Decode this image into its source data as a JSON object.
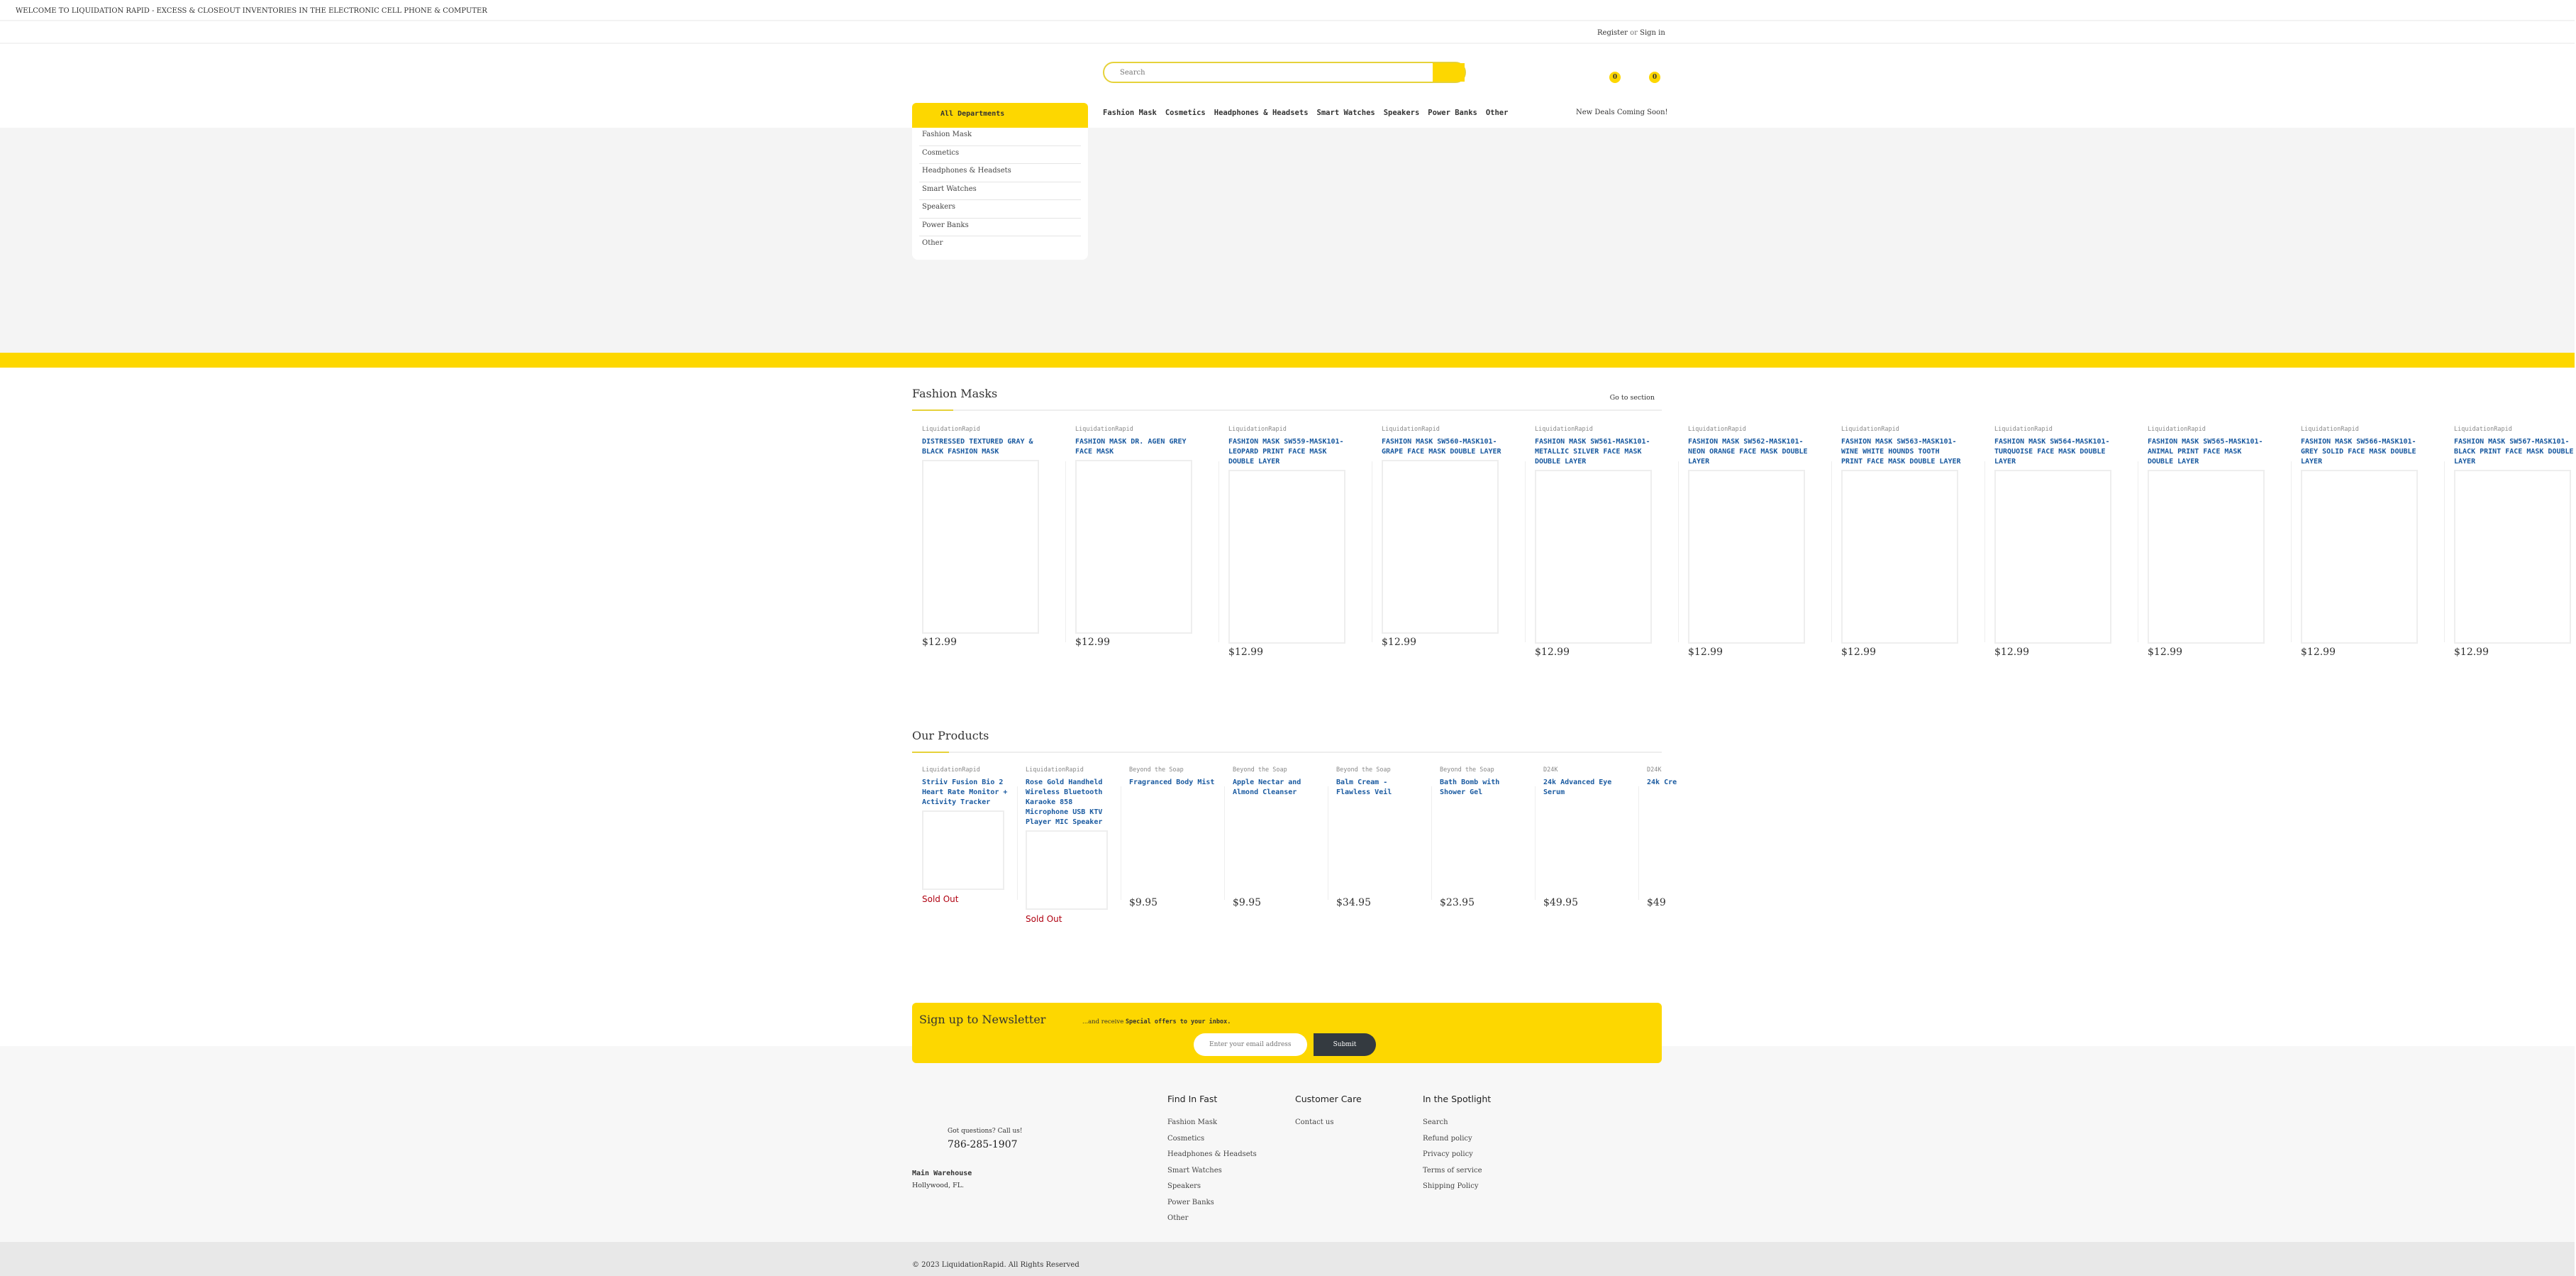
{
  "topbar": {
    "welcome": "WELCOME TO LIQUIDATION RAPID - EXCESS & CLOSEOUT INVENTORIES IN THE ELECTRONIC CELL PHONE & COMPUTER"
  },
  "account": {
    "register": "Register",
    "or": "or",
    "signin": "Sign in"
  },
  "search": {
    "placeholder": "Search"
  },
  "badges": {
    "wishlist": "0",
    "cart": "0"
  },
  "colors": {
    "accent": "#fdd700",
    "link": "#1a5aa0",
    "sold_out": "#b00010",
    "dark_button": "#343a40"
  },
  "departments": {
    "label": "All Departments",
    "items": [
      "Fashion Mask",
      "Cosmetics",
      "Headphones & Headsets",
      "Smart Watches",
      "Speakers",
      "Power Banks",
      "Other"
    ]
  },
  "nav": {
    "items": [
      "Fashion Mask",
      "Cosmetics",
      "Headphones & Headsets",
      "Smart Watches",
      "Speakers",
      "Power Banks",
      "Other"
    ],
    "deals": "New Deals Coming Soon!"
  },
  "fashion_masks": {
    "title": "Fashion Masks",
    "goto": "Go to section",
    "products": [
      {
        "brand": "LiquidationRapid",
        "title": "DISTRESSED TEXTURED GRAY & BLACK FASHION MASK",
        "price": "$12.99"
      },
      {
        "brand": "LiquidationRapid",
        "title": "FASHION MASK DR. AGEN GREY FACE MASK",
        "price": "$12.99"
      },
      {
        "brand": "LiquidationRapid",
        "title": "FASHION MASK SW559-MASK101- LEOPARD PRINT FACE MASK DOUBLE LAYER",
        "price": "$12.99"
      },
      {
        "brand": "LiquidationRapid",
        "title": "FASHION MASK SW560-MASK101- GRAPE FACE MASK DOUBLE LAYER",
        "price": "$12.99"
      },
      {
        "brand": "LiquidationRapid",
        "title": "FASHION MASK SW561-MASK101- METALLIC SILVER FACE MASK DOUBLE LAYER",
        "price": "$12.99"
      },
      {
        "brand": "LiquidationRapid",
        "title": "FASHION MASK SW562-MASK101-NEON ORANGE FACE MASK DOUBLE LAYER",
        "price": "$12.99"
      },
      {
        "brand": "LiquidationRapid",
        "title": "FASHION MASK SW563-MASK101- WINE WHITE HOUNDS TOOTH PRINT FACE MASK DOUBLE LAYER",
        "price": "$12.99"
      },
      {
        "brand": "LiquidationRapid",
        "title": "FASHION MASK SW564-MASK101- TURQUOISE FACE MASK DOUBLE LAYER",
        "price": "$12.99"
      },
      {
        "brand": "LiquidationRapid",
        "title": "FASHION MASK SW565-MASK101- ANIMAL PRINT FACE MASK DOUBLE LAYER",
        "price": "$12.99"
      },
      {
        "brand": "LiquidationRapid",
        "title": "FASHION MASK SW566-MASK101-GREY SOLID FACE MASK DOUBLE LAYER",
        "price": "$12.99"
      },
      {
        "brand": "LiquidationRapid",
        "title": "FASHION MASK SW567-MASK101-BLACK PRINT FACE MASK DOUBLE LAYER",
        "price": "$12.99"
      }
    ]
  },
  "our_products": {
    "title": "Our Products",
    "products": [
      {
        "brand": "LiquidationRapid",
        "title": "Striiv Fusion Bio 2 Heart Rate Monitor + Activity Tracker",
        "price": "",
        "status": "Sold Out",
        "image": true
      },
      {
        "brand": "LiquidationRapid",
        "title": "Rose Gold Handheld Wireless Bluetooth Karaoke 858 Microphone USB KTV Player MIC Speaker",
        "price": "",
        "status": "Sold Out",
        "image": true
      },
      {
        "brand": "Beyond the Soap",
        "title": "Fragranced Body Mist",
        "price": "$9.95",
        "status": "",
        "image": false
      },
      {
        "brand": "Beyond the Soap",
        "title": "Apple Nectar and Almond Cleanser",
        "price": "$9.95",
        "status": "",
        "image": false
      },
      {
        "brand": "Beyond the Soap",
        "title": "Balm Cream - Flawless Veil",
        "price": "$34.95",
        "status": "",
        "image": false
      },
      {
        "brand": "Beyond the Soap",
        "title": "Bath Bomb with Shower Gel",
        "price": "$23.95",
        "status": "",
        "image": false
      },
      {
        "brand": "D24K",
        "title": "24k Advanced Eye Serum",
        "price": "$49.95",
        "status": "",
        "image": false
      },
      {
        "brand": "D24K",
        "title": "24k Cre",
        "price": "$49",
        "status": "",
        "image": false
      }
    ]
  },
  "newsletter": {
    "title": "Sign up to Newsletter",
    "subtitle_prefix": "...and receive",
    "subtitle_bold": "Special offers to your inbox.",
    "placeholder": "Enter your email address",
    "submit": "Submit"
  },
  "footer": {
    "questions": "Got questions? Call us!",
    "phone": "786-285-1907",
    "warehouse_title": "Main Warehouse",
    "warehouse_location": "Hollywood, FL.",
    "columns": [
      {
        "title": "Find In Fast",
        "links": [
          "Fashion Mask",
          "Cosmetics",
          "Headphones & Headsets",
          "Smart Watches",
          "Speakers",
          "Power Banks",
          "Other"
        ]
      },
      {
        "title": "Customer Care",
        "links": [
          "Contact us"
        ]
      },
      {
        "title": "In the Spotlight",
        "links": [
          "Search",
          "Refund policy",
          "Privacy policy",
          "Terms of service",
          "Shipping Policy"
        ]
      }
    ],
    "copyright": "© 2023 LiquidationRapid. All Rights Reserved"
  }
}
